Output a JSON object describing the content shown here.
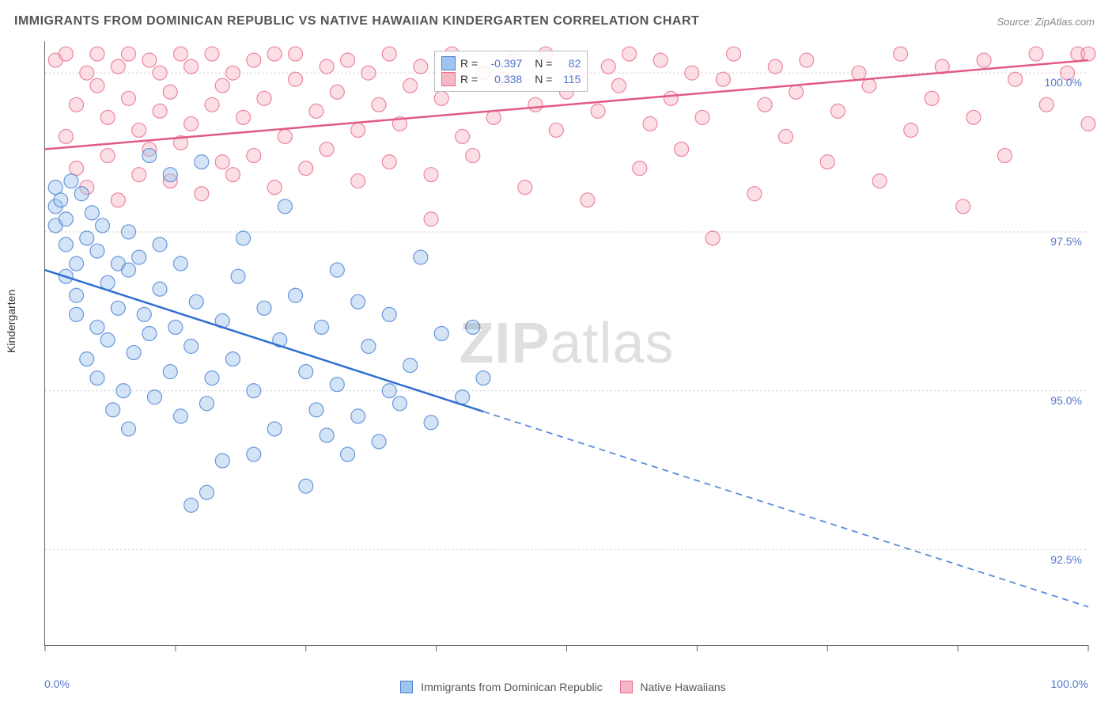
{
  "title": "IMMIGRANTS FROM DOMINICAN REPUBLIC VS NATIVE HAWAIIAN KINDERGARTEN CORRELATION CHART",
  "source": "Source: ZipAtlas.com",
  "watermark_a": "ZIP",
  "watermark_b": "atlas",
  "y_axis_label": "Kindergarten",
  "chart": {
    "type": "scatter",
    "xlim": [
      0,
      100
    ],
    "ylim": [
      91.0,
      100.5
    ],
    "x_ticks": [
      0,
      12.5,
      25,
      37.5,
      50,
      62.5,
      75,
      87.5,
      100
    ],
    "y_ticks": [
      92.5,
      95.0,
      97.5,
      100.0
    ],
    "y_tick_labels": [
      "92.5%",
      "95.0%",
      "97.5%",
      "100.0%"
    ],
    "x_min_label": "0.0%",
    "x_max_label": "100.0%",
    "background": "#ffffff",
    "grid_color": "#cccccc",
    "axis_color": "#666666",
    "tick_label_color": "#5577cc",
    "marker_radius": 9,
    "marker_opacity": 0.45,
    "line_width": 2.5,
    "series": [
      {
        "name": "Immigrants from Dominican Republic",
        "fill": "#9fc4ee",
        "stroke": "#4a7fd1",
        "line_color": "#2f6fd0",
        "R": "-0.397",
        "N": "82",
        "trend": {
          "y_at_x0": 96.9,
          "y_at_x100": 91.6,
          "solid_until_x": 42
        },
        "points": [
          [
            1,
            98.2
          ],
          [
            1,
            97.9
          ],
          [
            1,
            97.6
          ],
          [
            1.5,
            98.0
          ],
          [
            2,
            97.7
          ],
          [
            2,
            97.3
          ],
          [
            2,
            96.8
          ],
          [
            2.5,
            98.3
          ],
          [
            3,
            97.0
          ],
          [
            3,
            96.5
          ],
          [
            3,
            96.2
          ],
          [
            3.5,
            98.1
          ],
          [
            4,
            97.4
          ],
          [
            4,
            95.5
          ],
          [
            4.5,
            97.8
          ],
          [
            5,
            97.2
          ],
          [
            5,
            96.0
          ],
          [
            5,
            95.2
          ],
          [
            5.5,
            97.6
          ],
          [
            6,
            96.7
          ],
          [
            6,
            95.8
          ],
          [
            6.5,
            94.7
          ],
          [
            7,
            97.0
          ],
          [
            7,
            96.3
          ],
          [
            7.5,
            95.0
          ],
          [
            8,
            97.5
          ],
          [
            8,
            96.9
          ],
          [
            8,
            94.4
          ],
          [
            8.5,
            95.6
          ],
          [
            9,
            97.1
          ],
          [
            9.5,
            96.2
          ],
          [
            10,
            95.9
          ],
          [
            10,
            98.7
          ],
          [
            10.5,
            94.9
          ],
          [
            11,
            96.6
          ],
          [
            11,
            97.3
          ],
          [
            12,
            95.3
          ],
          [
            12,
            98.4
          ],
          [
            12.5,
            96.0
          ],
          [
            13,
            94.6
          ],
          [
            13,
            97.0
          ],
          [
            14,
            95.7
          ],
          [
            14,
            93.2
          ],
          [
            14.5,
            96.4
          ],
          [
            15,
            98.6
          ],
          [
            15.5,
            94.8
          ],
          [
            15.5,
            93.4
          ],
          [
            16,
            95.2
          ],
          [
            17,
            96.1
          ],
          [
            17,
            93.9
          ],
          [
            18,
            95.5
          ],
          [
            18.5,
            96.8
          ],
          [
            19,
            97.4
          ],
          [
            20,
            95.0
          ],
          [
            20,
            94.0
          ],
          [
            21,
            96.3
          ],
          [
            22,
            94.4
          ],
          [
            22.5,
            95.8
          ],
          [
            23,
            97.9
          ],
          [
            24,
            96.5
          ],
          [
            25,
            95.3
          ],
          [
            25,
            93.5
          ],
          [
            26,
            94.7
          ],
          [
            26.5,
            96.0
          ],
          [
            27,
            94.3
          ],
          [
            28,
            96.9
          ],
          [
            28,
            95.1
          ],
          [
            29,
            94.0
          ],
          [
            30,
            96.4
          ],
          [
            30,
            94.6
          ],
          [
            31,
            95.7
          ],
          [
            32,
            94.2
          ],
          [
            33,
            96.2
          ],
          [
            33,
            95.0
          ],
          [
            34,
            94.8
          ],
          [
            35,
            95.4
          ],
          [
            36,
            97.1
          ],
          [
            37,
            94.5
          ],
          [
            38,
            95.9
          ],
          [
            40,
            94.9
          ],
          [
            41,
            96.0
          ],
          [
            42,
            95.2
          ]
        ]
      },
      {
        "name": "Native Hawaiians",
        "fill": "#f6b8c6",
        "stroke": "#e76a8b",
        "line_color": "#e05a85",
        "R": "0.338",
        "N": "115",
        "trend": {
          "y_at_x0": 98.8,
          "y_at_x100": 100.2,
          "solid_until_x": 100
        },
        "points": [
          [
            1,
            100.2
          ],
          [
            2,
            99.0
          ],
          [
            2,
            100.3
          ],
          [
            3,
            98.5
          ],
          [
            3,
            99.5
          ],
          [
            4,
            100.0
          ],
          [
            4,
            98.2
          ],
          [
            5,
            99.8
          ],
          [
            5,
            100.3
          ],
          [
            6,
            98.7
          ],
          [
            6,
            99.3
          ],
          [
            7,
            100.1
          ],
          [
            7,
            98.0
          ],
          [
            8,
            99.6
          ],
          [
            8,
            100.3
          ],
          [
            9,
            98.4
          ],
          [
            9,
            99.1
          ],
          [
            10,
            100.2
          ],
          [
            10,
            98.8
          ],
          [
            11,
            99.4
          ],
          [
            11,
            100.0
          ],
          [
            12,
            98.3
          ],
          [
            12,
            99.7
          ],
          [
            13,
            100.3
          ],
          [
            13,
            98.9
          ],
          [
            14,
            99.2
          ],
          [
            14,
            100.1
          ],
          [
            15,
            98.1
          ],
          [
            16,
            99.5
          ],
          [
            16,
            100.3
          ],
          [
            17,
            98.6
          ],
          [
            17,
            99.8
          ],
          [
            18,
            100.0
          ],
          [
            18,
            98.4
          ],
          [
            19,
            99.3
          ],
          [
            20,
            100.2
          ],
          [
            20,
            98.7
          ],
          [
            21,
            99.6
          ],
          [
            22,
            100.3
          ],
          [
            22,
            98.2
          ],
          [
            23,
            99.0
          ],
          [
            24,
            99.9
          ],
          [
            24,
            100.3
          ],
          [
            25,
            98.5
          ],
          [
            26,
            99.4
          ],
          [
            27,
            100.1
          ],
          [
            27,
            98.8
          ],
          [
            28,
            99.7
          ],
          [
            29,
            100.2
          ],
          [
            30,
            98.3
          ],
          [
            30,
            99.1
          ],
          [
            31,
            100.0
          ],
          [
            32,
            99.5
          ],
          [
            33,
            100.3
          ],
          [
            33,
            98.6
          ],
          [
            34,
            99.2
          ],
          [
            35,
            99.8
          ],
          [
            36,
            100.1
          ],
          [
            37,
            98.4
          ],
          [
            37,
            97.7
          ],
          [
            38,
            99.6
          ],
          [
            39,
            100.3
          ],
          [
            40,
            99.0
          ],
          [
            41,
            98.7
          ],
          [
            42,
            100.0
          ],
          [
            43,
            99.3
          ],
          [
            44,
            99.9
          ],
          [
            45,
            100.2
          ],
          [
            46,
            98.2
          ],
          [
            47,
            99.5
          ],
          [
            48,
            100.3
          ],
          [
            49,
            99.1
          ],
          [
            50,
            99.7
          ],
          [
            51,
            100.0
          ],
          [
            52,
            98.0
          ],
          [
            53,
            99.4
          ],
          [
            54,
            100.1
          ],
          [
            55,
            99.8
          ],
          [
            56,
            100.3
          ],
          [
            57,
            98.5
          ],
          [
            58,
            99.2
          ],
          [
            59,
            100.2
          ],
          [
            60,
            99.6
          ],
          [
            61,
            98.8
          ],
          [
            62,
            100.0
          ],
          [
            63,
            99.3
          ],
          [
            64,
            97.4
          ],
          [
            65,
            99.9
          ],
          [
            66,
            100.3
          ],
          [
            68,
            98.1
          ],
          [
            69,
            99.5
          ],
          [
            70,
            100.1
          ],
          [
            71,
            99.0
          ],
          [
            72,
            99.7
          ],
          [
            73,
            100.2
          ],
          [
            75,
            98.6
          ],
          [
            76,
            99.4
          ],
          [
            78,
            100.0
          ],
          [
            79,
            99.8
          ],
          [
            80,
            98.3
          ],
          [
            82,
            100.3
          ],
          [
            83,
            99.1
          ],
          [
            85,
            99.6
          ],
          [
            86,
            100.1
          ],
          [
            88,
            97.9
          ],
          [
            89,
            99.3
          ],
          [
            90,
            100.2
          ],
          [
            92,
            98.7
          ],
          [
            93,
            99.9
          ],
          [
            95,
            100.3
          ],
          [
            96,
            99.5
          ],
          [
            98,
            100.0
          ],
          [
            99,
            100.3
          ],
          [
            100,
            99.2
          ],
          [
            100,
            100.3
          ]
        ]
      }
    ]
  },
  "legend": {
    "R_label": "R =",
    "N_label": "N ="
  },
  "bottom_legend": {
    "series1_label": "Immigrants from Dominican Republic",
    "series2_label": "Native Hawaiians"
  }
}
